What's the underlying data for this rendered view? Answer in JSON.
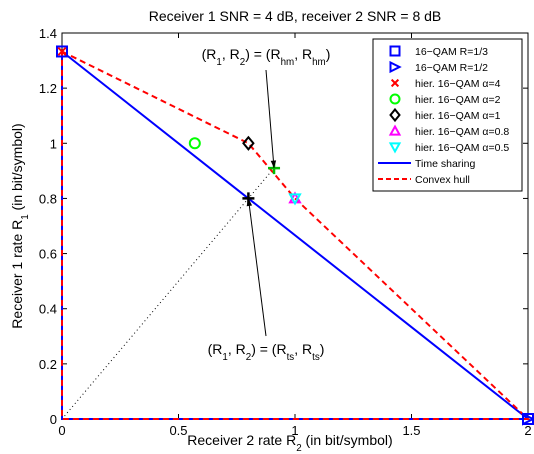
{
  "chart_data": {
    "type": "scatter",
    "title": "Receiver 1 SNR = 4 dB, receiver 2 SNR = 8 dB",
    "xlabel": {
      "base": "Receiver 2 rate R",
      "sub": "2",
      "tail": " (in bit/symbol)"
    },
    "ylabel": {
      "base": "Receiver 1 rate R",
      "sub": "1",
      "tail": " (in bit/symbol)"
    },
    "xlim": [
      0,
      2
    ],
    "ylim": [
      0,
      1.4
    ],
    "xticks": [
      {
        "v": 0,
        "label": "0"
      },
      {
        "v": 0.5,
        "label": "0.5"
      },
      {
        "v": 1,
        "label": "1"
      },
      {
        "v": 1.5,
        "label": "1.5"
      },
      {
        "v": 2,
        "label": "2"
      }
    ],
    "yticks": [
      {
        "v": 0,
        "label": "0"
      },
      {
        "v": 0.2,
        "label": "0.2"
      },
      {
        "v": 0.4,
        "label": "0.4"
      },
      {
        "v": 0.6,
        "label": "0.6"
      },
      {
        "v": 0.8,
        "label": "0.8"
      },
      {
        "v": 1.0,
        "label": "1"
      },
      {
        "v": 1.2,
        "label": "1.2"
      },
      {
        "v": 1.4,
        "label": "1.4"
      }
    ],
    "grid": false,
    "legend_position": "top-right",
    "markers": [
      {
        "name": "16−QAM R=1/3",
        "marker": "square",
        "color": "#0000ff",
        "points": [
          [
            0,
            1.333
          ],
          [
            2,
            0
          ]
        ]
      },
      {
        "name": "16−QAM R=1/2",
        "marker": "triangle-right",
        "color": "#0000ff",
        "points": [
          [
            2,
            0
          ]
        ]
      },
      {
        "name": "hier. 16−QAM α=4",
        "marker": "x",
        "color": "#ff0000",
        "points": [
          [
            0,
            1.333
          ]
        ]
      },
      {
        "name": "hier. 16−QAM α=2",
        "marker": "circle",
        "color": "#00ff00",
        "points": [
          [
            0.57,
            1.0
          ]
        ]
      },
      {
        "name": "hier. 16−QAM α=1",
        "marker": "diamond",
        "color": "#000000",
        "points": [
          [
            0.8,
            1.0
          ]
        ]
      },
      {
        "name": "hier. 16−QAM α=0.8",
        "marker": "triangle-up",
        "color": "#ff00ff",
        "points": [
          [
            1.0,
            0.8
          ]
        ]
      },
      {
        "name": "hier. 16−QAM α=0.5",
        "marker": "triangle-down",
        "color": "#00ffff",
        "points": [
          [
            1.0,
            0.8
          ]
        ]
      }
    ],
    "lines": [
      {
        "name": "Time sharing",
        "style": "solid",
        "color": "#0000ff",
        "points": [
          [
            0,
            1.333
          ],
          [
            2,
            0
          ],
          [
            0,
            0
          ],
          [
            0,
            1.333
          ]
        ]
      },
      {
        "name": "Convex hull",
        "style": "dashed",
        "color": "#ff0000",
        "points": [
          [
            0,
            1.333
          ],
          [
            0.8,
            1.0
          ],
          [
            1.0,
            0.8
          ],
          [
            2,
            0
          ],
          [
            0,
            0
          ],
          [
            0,
            1.333
          ]
        ]
      }
    ],
    "extra_points": [
      {
        "marker": "plus",
        "color": "#00bb00",
        "point": [
          0.91,
          0.91
        ]
      },
      {
        "marker": "plus",
        "color": "#000000",
        "point": [
          0.8,
          0.8
        ]
      }
    ],
    "diagonal": {
      "style": "dotted",
      "color": "#000000",
      "from": [
        0,
        0
      ],
      "to": [
        0.91,
        0.91
      ]
    },
    "annotations": [
      {
        "id": "hm",
        "text": {
          "pre": "(R",
          "s1": "1",
          "mid": ", R",
          "s2": "2",
          "eq": ") = (R",
          "s3": "hm",
          "comma": ", R",
          "s4": "hm",
          "post": ")"
        },
        "target": [
          0.91,
          0.91
        ]
      },
      {
        "id": "ts",
        "text": {
          "pre": "(R",
          "s1": "1",
          "mid": ", R",
          "s2": "2",
          "eq": ") = (R",
          "s3": "ts",
          "comma": ", R",
          "s4": "ts",
          "post": ")"
        },
        "target": [
          0.8,
          0.8
        ]
      }
    ]
  }
}
